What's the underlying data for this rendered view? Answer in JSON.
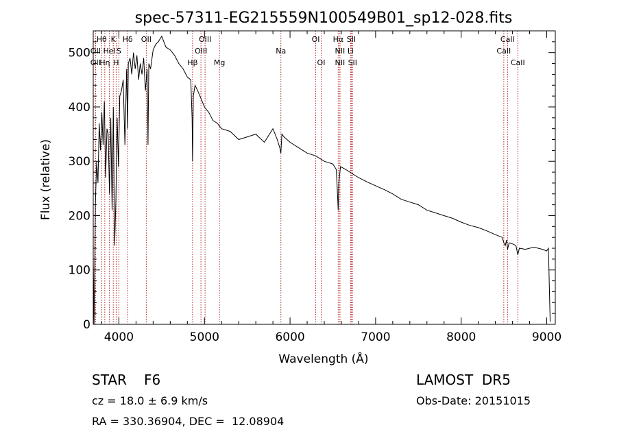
{
  "chart_data": {
    "type": "line",
    "title": "spec-57311-EG215559N100549B01_sp12-028.fits",
    "xlabel": "Wavelength (Å)",
    "ylabel": "Flux (relative)",
    "xlim": [
      3700,
      9100
    ],
    "ylim": [
      0,
      540
    ],
    "x_ticks": [
      4000,
      5000,
      6000,
      7000,
      8000,
      9000
    ],
    "y_ticks": [
      0,
      100,
      200,
      300,
      400,
      500
    ],
    "grid": false,
    "line_color": "#000000",
    "marker_color": "#b22222",
    "series": [
      {
        "x": [
          3700,
          3710,
          3725,
          3740,
          3755,
          3770,
          3785,
          3800,
          3815,
          3830,
          3845,
          3860,
          3875,
          3890,
          3905,
          3920,
          3935,
          3950,
          3965,
          3980,
          3995,
          4010,
          4030,
          4050,
          4070,
          4090,
          4101,
          4110,
          4130,
          4150,
          4170,
          4190,
          4210,
          4230,
          4250,
          4270,
          4290,
          4310,
          4330,
          4340,
          4350,
          4370,
          4400,
          4430,
          4460,
          4500,
          4550,
          4600,
          4650,
          4700,
          4750,
          4800,
          4840,
          4855,
          4861,
          4870,
          4890,
          4920,
          4960,
          5000,
          5050,
          5100,
          5150,
          5200,
          5300,
          5400,
          5500,
          5600,
          5700,
          5800,
          5850,
          5880,
          5893,
          5905,
          5930,
          6000,
          6100,
          6200,
          6300,
          6400,
          6500,
          6540,
          6555,
          6563,
          6570,
          6590,
          6650,
          6700,
          6800,
          6900,
          7000,
          7100,
          7200,
          7300,
          7400,
          7500,
          7600,
          7700,
          7800,
          7900,
          8000,
          8100,
          8200,
          8300,
          8400,
          8480,
          8498,
          8515,
          8530,
          8542,
          8560,
          8600,
          8640,
          8662,
          8680,
          8750,
          8850,
          8950,
          9000,
          9020,
          9040
        ],
        "y": [
          120,
          0,
          220,
          300,
          260,
          370,
          320,
          390,
          330,
          410,
          270,
          360,
          350,
          240,
          380,
          210,
          400,
          145,
          230,
          380,
          290,
          420,
          430,
          450,
          330,
          470,
          360,
          480,
          490,
          460,
          500,
          470,
          495,
          450,
          480,
          460,
          490,
          430,
          470,
          330,
          480,
          470,
          505,
          515,
          520,
          530,
          510,
          505,
          495,
          480,
          470,
          455,
          450,
          380,
          300,
          420,
          440,
          430,
          415,
          400,
          390,
          375,
          370,
          360,
          355,
          340,
          345,
          350,
          335,
          360,
          340,
          325,
          315,
          350,
          345,
          335,
          325,
          315,
          310,
          300,
          295,
          285,
          240,
          210,
          260,
          290,
          285,
          280,
          270,
          262,
          255,
          248,
          240,
          230,
          225,
          220,
          210,
          205,
          200,
          195,
          188,
          182,
          178,
          172,
          165,
          160,
          150,
          145,
          155,
          138,
          150,
          148,
          145,
          128,
          140,
          138,
          142,
          138,
          135,
          140,
          5
        ]
      }
    ],
    "spectral_lines": [
      {
        "label": "Hθ",
        "x": 3798,
        "row": 0
      },
      {
        "label": "K",
        "x": 3934,
        "row": 0
      },
      {
        "label": "Hδ",
        "x": 4102,
        "row": 0
      },
      {
        "label": "OII",
        "x": 3727,
        "row": 1
      },
      {
        "label": "HeI",
        "x": 3889,
        "row": 1
      },
      {
        "label": "S",
        "x": 4000,
        "row": 1
      },
      {
        "label": "OII",
        "x": 3727,
        "row": 2
      },
      {
        "label": "Hη",
        "x": 3835,
        "row": 2
      },
      {
        "label": "H",
        "x": 3968,
        "row": 2
      },
      {
        "label": "OII",
        "x": 4320,
        "row": 0
      },
      {
        "label": "OIII",
        "x": 5007,
        "row": 0
      },
      {
        "label": "OIII",
        "x": 4959,
        "row": 1
      },
      {
        "label": "Hβ",
        "x": 4861,
        "row": 2
      },
      {
        "label": "Mg",
        "x": 5175,
        "row": 2
      },
      {
        "label": "Na",
        "x": 5893,
        "row": 1
      },
      {
        "label": "OI",
        "x": 6300,
        "row": 0
      },
      {
        "label": "OI",
        "x": 6364,
        "row": 2
      },
      {
        "label": "Hα",
        "x": 6563,
        "row": 0
      },
      {
        "label": "SII",
        "x": 6716,
        "row": 0
      },
      {
        "label": "NII",
        "x": 6583,
        "row": 1
      },
      {
        "label": "Li",
        "x": 6708,
        "row": 1
      },
      {
        "label": "NII",
        "x": 6583,
        "row": 2
      },
      {
        "label": "SII",
        "x": 6731,
        "row": 2
      },
      {
        "label": "CaII",
        "x": 8542,
        "row": 0
      },
      {
        "label": "CaII",
        "x": 8498,
        "row": 1
      },
      {
        "label": "CaII",
        "x": 8662,
        "row": 2
      }
    ]
  },
  "info": {
    "object_class": "STAR",
    "subclass": "F6",
    "survey": "LAMOST  DR5",
    "redshift": "cz = 18.0 ± 6.9 km/s",
    "obs_date": "Obs-Date: 20151015",
    "coords": "RA = 330.36904, DEC =  12.08904"
  }
}
